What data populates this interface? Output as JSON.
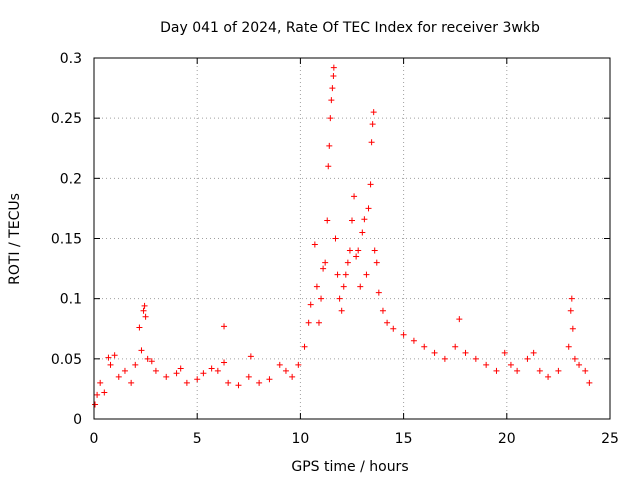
{
  "chart_data": {
    "type": "scatter",
    "title": "Day 041 of 2024, Rate Of TEC Index for receiver 3wkb",
    "xlabel": "GPS time / hours",
    "ylabel": "ROTI / TECUs",
    "xlim": [
      0,
      25
    ],
    "ylim": [
      0,
      0.3
    ],
    "xticks": [
      0,
      5,
      10,
      15,
      20,
      25
    ],
    "xtick_labels": [
      "0",
      "5",
      "10",
      "15",
      "20",
      "25"
    ],
    "yticks": [
      0,
      0.05,
      0.1,
      0.15,
      0.2,
      0.25,
      0.3
    ],
    "ytick_labels": [
      "0",
      "0.05",
      "0.1",
      "0.15",
      "0.2",
      "0.25",
      "0.3"
    ],
    "grid": true,
    "marker": "+",
    "color": "#ff0000",
    "series": [
      {
        "name": "ROTI",
        "points": [
          [
            0.05,
            0.012
          ],
          [
            0.15,
            0.02
          ],
          [
            0.3,
            0.03
          ],
          [
            0.5,
            0.022
          ],
          [
            0.7,
            0.051
          ],
          [
            0.8,
            0.045
          ],
          [
            1.0,
            0.053
          ],
          [
            1.2,
            0.035
          ],
          [
            1.5,
            0.04
          ],
          [
            1.8,
            0.03
          ],
          [
            2.0,
            0.045
          ],
          [
            2.2,
            0.076
          ],
          [
            2.3,
            0.057
          ],
          [
            2.4,
            0.09
          ],
          [
            2.45,
            0.094
          ],
          [
            2.5,
            0.085
          ],
          [
            2.6,
            0.05
          ],
          [
            2.8,
            0.048
          ],
          [
            3.0,
            0.04
          ],
          [
            3.5,
            0.035
          ],
          [
            4.0,
            0.038
          ],
          [
            4.2,
            0.042
          ],
          [
            4.5,
            0.03
          ],
          [
            5.0,
            0.033
          ],
          [
            5.3,
            0.038
          ],
          [
            5.7,
            0.042
          ],
          [
            6.0,
            0.04
          ],
          [
            6.3,
            0.047
          ],
          [
            6.3,
            0.077
          ],
          [
            6.5,
            0.03
          ],
          [
            7.0,
            0.028
          ],
          [
            7.5,
            0.035
          ],
          [
            7.6,
            0.052
          ],
          [
            8.0,
            0.03
          ],
          [
            8.5,
            0.033
          ],
          [
            9.0,
            0.045
          ],
          [
            9.3,
            0.04
          ],
          [
            9.6,
            0.035
          ],
          [
            9.9,
            0.045
          ],
          [
            10.2,
            0.06
          ],
          [
            10.4,
            0.08
          ],
          [
            10.5,
            0.095
          ],
          [
            10.7,
            0.145
          ],
          [
            10.8,
            0.11
          ],
          [
            10.9,
            0.08
          ],
          [
            11.0,
            0.1
          ],
          [
            11.1,
            0.125
          ],
          [
            11.2,
            0.13
          ],
          [
            11.3,
            0.165
          ],
          [
            11.35,
            0.21
          ],
          [
            11.4,
            0.227
          ],
          [
            11.45,
            0.25
          ],
          [
            11.5,
            0.265
          ],
          [
            11.55,
            0.275
          ],
          [
            11.6,
            0.285
          ],
          [
            11.62,
            0.292
          ],
          [
            11.7,
            0.15
          ],
          [
            11.8,
            0.12
          ],
          [
            11.9,
            0.1
          ],
          [
            12.0,
            0.09
          ],
          [
            12.1,
            0.11
          ],
          [
            12.2,
            0.12
          ],
          [
            12.3,
            0.13
          ],
          [
            12.4,
            0.14
          ],
          [
            12.5,
            0.165
          ],
          [
            12.6,
            0.185
          ],
          [
            12.7,
            0.135
          ],
          [
            12.8,
            0.14
          ],
          [
            12.9,
            0.11
          ],
          [
            13.0,
            0.155
          ],
          [
            13.1,
            0.166
          ],
          [
            13.2,
            0.12
          ],
          [
            13.3,
            0.175
          ],
          [
            13.4,
            0.195
          ],
          [
            13.45,
            0.23
          ],
          [
            13.5,
            0.245
          ],
          [
            13.55,
            0.255
          ],
          [
            13.6,
            0.14
          ],
          [
            13.7,
            0.13
          ],
          [
            13.8,
            0.105
          ],
          [
            14.0,
            0.09
          ],
          [
            14.2,
            0.08
          ],
          [
            14.5,
            0.075
          ],
          [
            15.0,
            0.07
          ],
          [
            15.5,
            0.065
          ],
          [
            16.0,
            0.06
          ],
          [
            16.5,
            0.055
          ],
          [
            17.0,
            0.05
          ],
          [
            17.5,
            0.06
          ],
          [
            17.7,
            0.083
          ],
          [
            18.0,
            0.055
          ],
          [
            18.5,
            0.05
          ],
          [
            19.0,
            0.045
          ],
          [
            19.5,
            0.04
          ],
          [
            19.9,
            0.055
          ],
          [
            20.2,
            0.045
          ],
          [
            20.5,
            0.04
          ],
          [
            21.0,
            0.05
          ],
          [
            21.3,
            0.055
          ],
          [
            21.6,
            0.04
          ],
          [
            22.0,
            0.035
          ],
          [
            22.5,
            0.04
          ],
          [
            23.0,
            0.06
          ],
          [
            23.1,
            0.09
          ],
          [
            23.15,
            0.1
          ],
          [
            23.2,
            0.075
          ],
          [
            23.3,
            0.05
          ],
          [
            23.5,
            0.045
          ],
          [
            23.8,
            0.04
          ],
          [
            24.0,
            0.03
          ]
        ]
      }
    ]
  }
}
